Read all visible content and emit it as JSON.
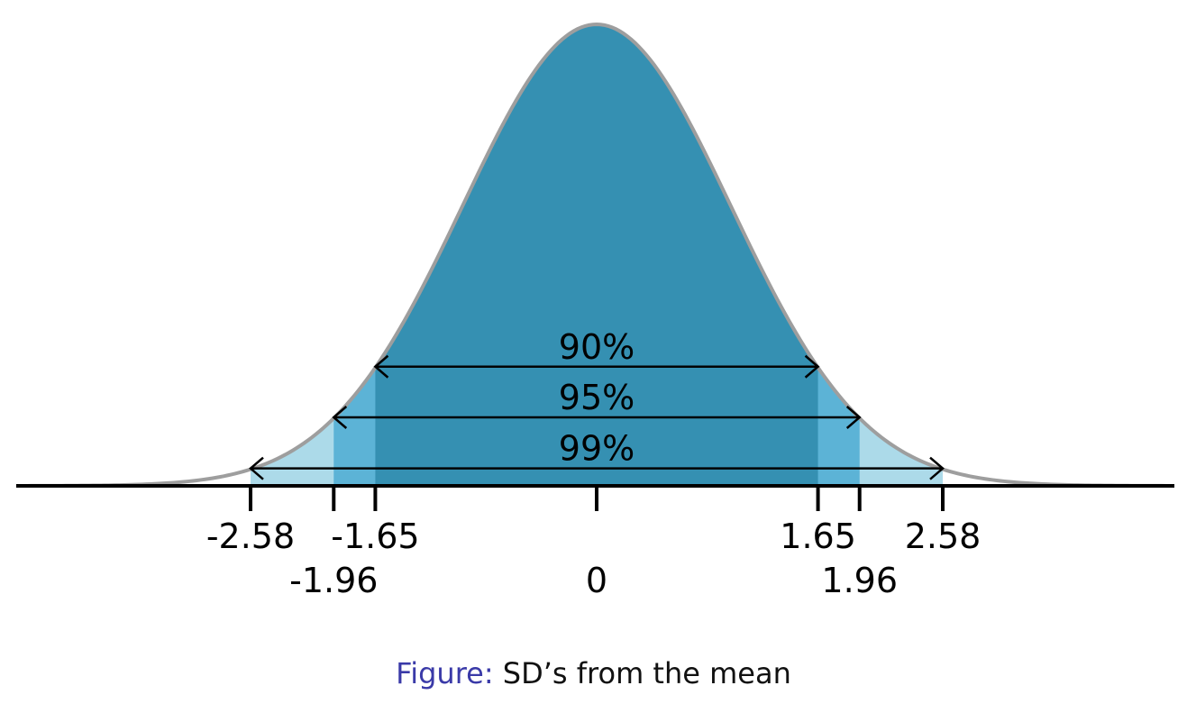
{
  "chart_data": {
    "type": "area",
    "distribution": "standard normal",
    "xlim": [
      -4.3,
      4.3
    ],
    "ticks": [
      {
        "value": -2.58,
        "label": "-2.58",
        "row": 1
      },
      {
        "value": -1.96,
        "label": "-1.96",
        "row": 2
      },
      {
        "value": -1.65,
        "label": "-1.65",
        "row": 1
      },
      {
        "value": 0,
        "label": "0",
        "row": 2
      },
      {
        "value": 1.65,
        "label": "1.65",
        "row": 1
      },
      {
        "value": 1.96,
        "label": "1.96",
        "row": 2
      },
      {
        "value": 2.58,
        "label": "2.58",
        "row": 1
      }
    ],
    "intervals": [
      {
        "label": "90%",
        "from": -1.65,
        "to": 1.65
      },
      {
        "label": "95%",
        "from": -1.96,
        "to": 1.96
      },
      {
        "label": "99%",
        "from": -2.58,
        "to": 2.58
      }
    ],
    "colors": {
      "center_90": "#3590b2",
      "band_95": "#5cb3d6",
      "band_99": "#acdae9",
      "curve": "#9e9e9e",
      "axis": "#000000"
    }
  },
  "caption": {
    "prefix": "Figure:",
    "text": "SD’s from the mean"
  }
}
